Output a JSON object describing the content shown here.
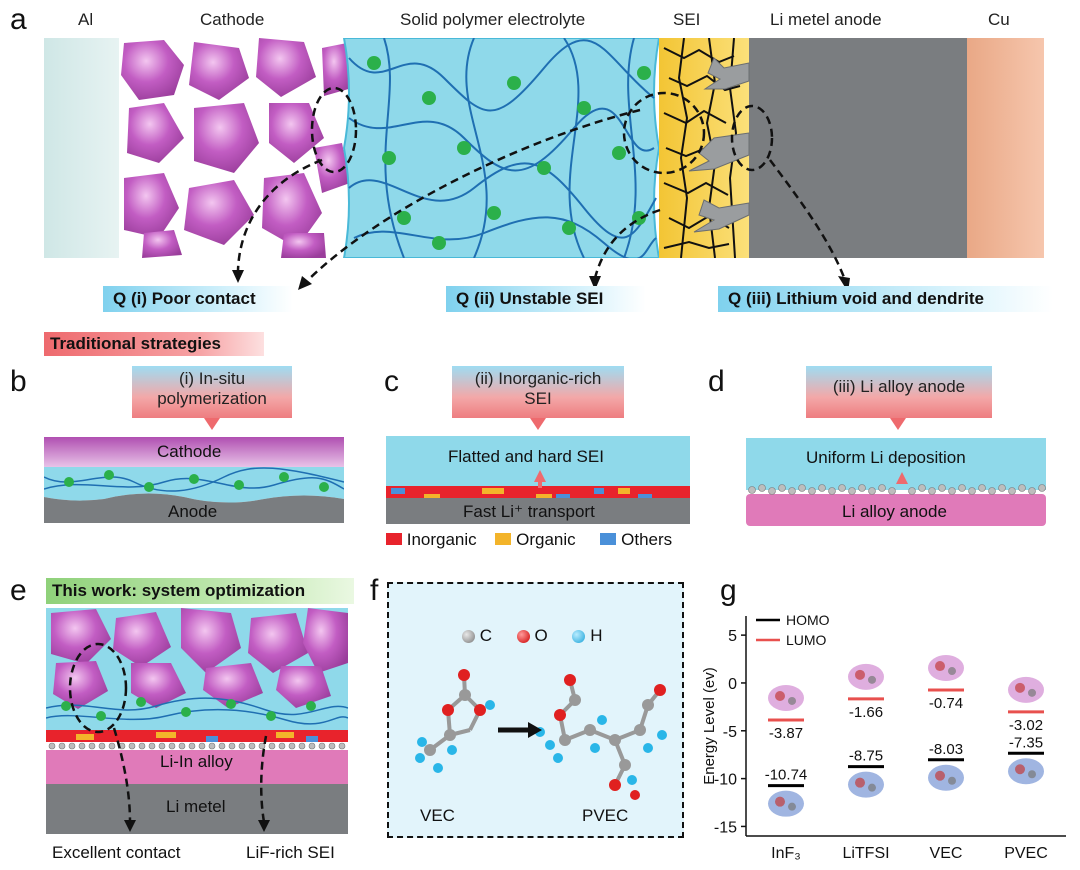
{
  "panel_labels": {
    "a": "a",
    "b": "b",
    "c": "c",
    "d": "d",
    "e": "e",
    "f": "f",
    "g": "g"
  },
  "top_layers": [
    "Al",
    "Cathode",
    "Solid polymer electrolyte",
    "SEI",
    "Li metel anode",
    "Cu"
  ],
  "questions": [
    "Q (i) Poor contact",
    "Q (ii) Unstable SEI",
    "Q (iii) Lithium void and dendrite"
  ],
  "traditional": "Traditional strategies",
  "b": {
    "box": "(i) In-situ polymerization",
    "box_l1": "(i) In-situ",
    "box_l2": "polymerization",
    "top": "Cathode",
    "bottom": "Anode"
  },
  "c": {
    "box_l1": "(ii) Inorganic-rich",
    "box_l2": "SEI",
    "top": "Flatted and hard SEI",
    "bottom": "Fast Li⁺ transport",
    "legend": [
      {
        "label": "Inorganic",
        "color": "#e8232c"
      },
      {
        "label": "Organic",
        "color": "#f3b42a"
      },
      {
        "label": "Others",
        "color": "#4a90d9"
      }
    ]
  },
  "d": {
    "box": "(iii) Li alloy anode",
    "top": "Uniform Li deposition",
    "bottom": "Li alloy anode"
  },
  "e": {
    "title": "This work: system optimization",
    "alloy": "Li-In alloy",
    "metal": "Li metel",
    "notes": [
      "Excellent contact",
      "LiF-rich SEI"
    ]
  },
  "f": {
    "legend": [
      {
        "label": "C",
        "color": "#9a9a9a"
      },
      {
        "label": "O",
        "color": "#e02020"
      },
      {
        "label": "H",
        "color": "#29b6e8"
      }
    ],
    "left": "VEC",
    "right": "PVEC"
  },
  "colors": {
    "purple": "#b04fb1",
    "blue": "#7fd1ee",
    "grey": "#808080",
    "pink": "#e07ab9",
    "red": "#e8232c",
    "yellow": "#f3c534"
  },
  "chart_data": {
    "type": "scatter",
    "title": "",
    "xlabel": "",
    "ylabel": "Energy Level (ev)",
    "categories": [
      "InF₃",
      "LiTFSI",
      "VEC",
      "PVEC"
    ],
    "ylim": [
      -16,
      7
    ],
    "yticks": [
      5,
      0,
      -5,
      -10,
      -15
    ],
    "legend": [
      "HOMO",
      "LUMO"
    ],
    "series": [
      {
        "name": "HOMO",
        "color": "#000000",
        "values": [
          -10.74,
          -8.75,
          -8.03,
          -7.35
        ]
      },
      {
        "name": "LUMO",
        "color": "#e8504e",
        "values": [
          -3.87,
          -1.66,
          -0.74,
          -3.02
        ]
      }
    ]
  }
}
